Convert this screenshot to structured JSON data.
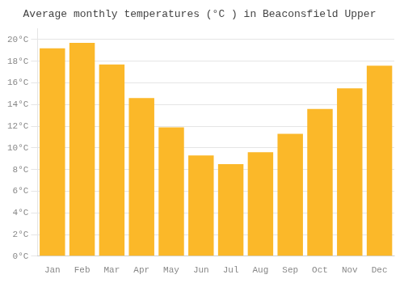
{
  "chart_data": {
    "type": "bar",
    "title": "Average monthly temperatures (°C ) in Beaconsfield Upper",
    "categories": [
      "Jan",
      "Feb",
      "Mar",
      "Apr",
      "May",
      "Jun",
      "Jul",
      "Aug",
      "Sep",
      "Oct",
      "Nov",
      "Dec"
    ],
    "values": [
      19.2,
      19.7,
      17.7,
      14.6,
      11.9,
      9.3,
      8.5,
      9.6,
      11.3,
      13.6,
      15.5,
      17.6
    ],
    "color": "#FBB829",
    "ylim": [
      0,
      21
    ],
    "yticks": [
      {
        "value": 0,
        "label": "0°C"
      },
      {
        "value": 2,
        "label": "2°C"
      },
      {
        "value": 4,
        "label": "4°C"
      },
      {
        "value": 6,
        "label": "6°C"
      },
      {
        "value": 8,
        "label": "8°C"
      },
      {
        "value": 10,
        "label": "10°C"
      },
      {
        "value": 12,
        "label": "12°C"
      },
      {
        "value": 14,
        "label": "14°C"
      },
      {
        "value": 16,
        "label": "16°C"
      },
      {
        "value": 18,
        "label": "18°C"
      },
      {
        "value": 20,
        "label": "20°C"
      }
    ],
    "grid": true
  }
}
